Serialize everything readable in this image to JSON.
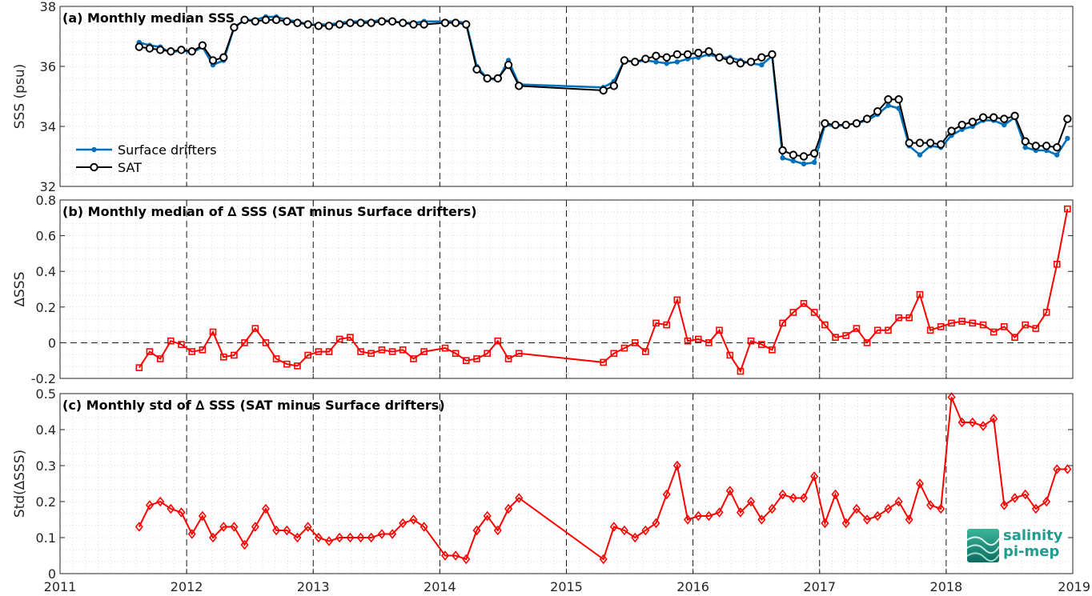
{
  "chart_data": [
    {
      "type": "line",
      "title": "(a) Monthly median SSS",
      "xlabel": "",
      "ylabel": "SSS (psu)",
      "xlim": [
        2011,
        2019
      ],
      "ylim": [
        32,
        38
      ],
      "yticks": [
        "32",
        "34",
        "36",
        "38"
      ],
      "grid": "minor dotted, yearly dashed",
      "legend": "left",
      "series": [
        {
          "name": "Surface drifters",
          "color": "#0072BD",
          "marker": "dot",
          "x": [
            2011.625,
            2011.708,
            2011.792,
            2011.875,
            2011.958,
            2012.042,
            2012.125,
            2012.208,
            2012.292,
            2012.375,
            2012.458,
            2012.542,
            2012.625,
            2012.708,
            2012.792,
            2012.875,
            2012.958,
            2013.042,
            2013.125,
            2013.208,
            2013.292,
            2013.375,
            2013.458,
            2013.542,
            2013.625,
            2013.708,
            2013.792,
            2013.875,
            2014.042,
            2014.125,
            2014.208,
            2014.292,
            2014.375,
            2014.458,
            2014.542,
            2014.625,
            2015.292,
            2015.375,
            2015.458,
            2015.542,
            2015.625,
            2015.708,
            2015.792,
            2015.875,
            2015.958,
            2016.042,
            2016.125,
            2016.208,
            2016.292,
            2016.375,
            2016.458,
            2016.542,
            2016.625,
            2016.708,
            2016.792,
            2016.875,
            2016.958,
            2017.042,
            2017.125,
            2017.208,
            2017.292,
            2017.375,
            2017.458,
            2017.542,
            2017.625,
            2017.708,
            2017.792,
            2017.875,
            2017.958,
            2018.042,
            2018.125,
            2018.208,
            2018.292,
            2018.375,
            2018.458,
            2018.542,
            2018.625,
            2018.708,
            2018.792,
            2018.875,
            2018.958
          ],
          "y": [
            36.8,
            36.7,
            36.65,
            36.45,
            36.55,
            36.45,
            36.65,
            36.05,
            36.2,
            37.3,
            37.55,
            37.55,
            37.65,
            37.65,
            37.55,
            37.5,
            37.4,
            37.4,
            37.4,
            37.45,
            37.5,
            37.5,
            37.5,
            37.55,
            37.5,
            37.45,
            37.45,
            37.5,
            37.5,
            37.5,
            37.45,
            36.0,
            35.6,
            35.55,
            36.2,
            35.4,
            35.3,
            35.5,
            36.2,
            36.15,
            36.2,
            36.15,
            36.1,
            36.15,
            36.25,
            36.3,
            36.4,
            36.3,
            36.3,
            36.2,
            36.1,
            36.05,
            36.35,
            32.95,
            32.85,
            32.75,
            32.8,
            34.05,
            34.0,
            34.05,
            34.1,
            34.2,
            34.4,
            34.7,
            34.6,
            33.35,
            33.05,
            33.35,
            33.3,
            33.7,
            33.9,
            34.0,
            34.2,
            34.2,
            34.05,
            34.3,
            33.3,
            33.2,
            33.2,
            33.05,
            33.6
          ]
        },
        {
          "name": "SAT",
          "color": "#000000",
          "marker": "circle",
          "x": [
            2011.625,
            2011.708,
            2011.792,
            2011.875,
            2011.958,
            2012.042,
            2012.125,
            2012.208,
            2012.292,
            2012.375,
            2012.458,
            2012.542,
            2012.625,
            2012.708,
            2012.792,
            2012.875,
            2012.958,
            2013.042,
            2013.125,
            2013.208,
            2013.292,
            2013.375,
            2013.458,
            2013.542,
            2013.625,
            2013.708,
            2013.792,
            2013.875,
            2014.042,
            2014.125,
            2014.208,
            2014.292,
            2014.375,
            2014.458,
            2014.542,
            2014.625,
            2015.292,
            2015.375,
            2015.458,
            2015.542,
            2015.625,
            2015.708,
            2015.792,
            2015.875,
            2015.958,
            2016.042,
            2016.125,
            2016.208,
            2016.292,
            2016.375,
            2016.458,
            2016.542,
            2016.625,
            2016.708,
            2016.792,
            2016.875,
            2016.958,
            2017.042,
            2017.125,
            2017.208,
            2017.292,
            2017.375,
            2017.458,
            2017.542,
            2017.625,
            2017.708,
            2017.792,
            2017.875,
            2017.958,
            2018.042,
            2018.125,
            2018.208,
            2018.292,
            2018.375,
            2018.458,
            2018.542,
            2018.625,
            2018.708,
            2018.792,
            2018.875,
            2018.958
          ],
          "y": [
            36.65,
            36.6,
            36.55,
            36.5,
            36.55,
            36.5,
            36.7,
            36.2,
            36.3,
            37.3,
            37.55,
            37.5,
            37.55,
            37.55,
            37.5,
            37.45,
            37.4,
            37.35,
            37.35,
            37.4,
            37.45,
            37.45,
            37.45,
            37.5,
            37.5,
            37.45,
            37.4,
            37.4,
            37.45,
            37.45,
            37.4,
            35.9,
            35.6,
            35.6,
            36.05,
            35.35,
            35.2,
            35.35,
            36.2,
            36.15,
            36.25,
            36.35,
            36.3,
            36.4,
            36.4,
            36.45,
            36.5,
            36.3,
            36.2,
            36.1,
            36.15,
            36.3,
            36.4,
            33.2,
            33.05,
            33.0,
            33.1,
            34.1,
            34.05,
            34.05,
            34.1,
            34.25,
            34.5,
            34.9,
            34.9,
            33.45,
            33.45,
            33.45,
            33.4,
            33.85,
            34.05,
            34.15,
            34.3,
            34.3,
            34.25,
            34.35,
            33.5,
            33.35,
            33.35,
            33.3,
            34.25
          ]
        }
      ]
    },
    {
      "type": "line",
      "title": "(b) Monthly median of ∆ SSS (SAT minus Surface drifters)",
      "xlabel": "",
      "ylabel": "∆SSS",
      "xlim": [
        2011,
        2019
      ],
      "ylim": [
        -0.2,
        0.8
      ],
      "yticks": [
        "-0.2",
        "0",
        "0.2",
        "0.4",
        "0.6",
        "0.8"
      ],
      "zero_line": true,
      "series": [
        {
          "color": "#FF0000",
          "marker": "square",
          "x": [
            2011.625,
            2011.708,
            2011.792,
            2011.875,
            2011.958,
            2012.042,
            2012.125,
            2012.208,
            2012.292,
            2012.375,
            2012.458,
            2012.542,
            2012.625,
            2012.708,
            2012.792,
            2012.875,
            2012.958,
            2013.042,
            2013.125,
            2013.208,
            2013.292,
            2013.375,
            2013.458,
            2013.542,
            2013.625,
            2013.708,
            2013.792,
            2013.875,
            2014.042,
            2014.125,
            2014.208,
            2014.292,
            2014.375,
            2014.458,
            2014.542,
            2014.625,
            2015.292,
            2015.375,
            2015.458,
            2015.542,
            2015.625,
            2015.708,
            2015.792,
            2015.875,
            2015.958,
            2016.042,
            2016.125,
            2016.208,
            2016.292,
            2016.375,
            2016.458,
            2016.542,
            2016.625,
            2016.708,
            2016.792,
            2016.875,
            2016.958,
            2017.042,
            2017.125,
            2017.208,
            2017.292,
            2017.375,
            2017.458,
            2017.542,
            2017.625,
            2017.708,
            2017.792,
            2017.875,
            2017.958,
            2018.042,
            2018.125,
            2018.208,
            2018.292,
            2018.375,
            2018.458,
            2018.542,
            2018.625,
            2018.708,
            2018.792,
            2018.875,
            2018.958
          ],
          "y": [
            -0.14,
            -0.05,
            -0.09,
            0.01,
            -0.01,
            -0.05,
            -0.04,
            0.06,
            -0.08,
            -0.07,
            0.0,
            0.08,
            0.0,
            -0.09,
            -0.12,
            -0.13,
            -0.07,
            -0.05,
            -0.05,
            0.02,
            0.03,
            -0.05,
            -0.06,
            -0.04,
            -0.05,
            -0.04,
            -0.09,
            -0.05,
            -0.03,
            -0.06,
            -0.1,
            -0.09,
            -0.06,
            0.01,
            -0.09,
            -0.06,
            -0.11,
            -0.06,
            -0.03,
            0.0,
            -0.05,
            0.11,
            0.1,
            0.24,
            0.01,
            0.02,
            0.0,
            0.07,
            -0.07,
            -0.16,
            0.01,
            -0.01,
            -0.04,
            0.11,
            0.17,
            0.22,
            0.17,
            0.1,
            0.03,
            0.04,
            0.08,
            0.0,
            0.07,
            0.07,
            0.14,
            0.14,
            0.27,
            0.07,
            0.09,
            0.11,
            0.12,
            0.11,
            0.1,
            0.06,
            0.09,
            0.03,
            0.1,
            0.08,
            0.17,
            0.44,
            0.75
          ]
        }
      ]
    },
    {
      "type": "line",
      "title": "(c) Monthly std of ∆ SSS (SAT minus Surface drifters)",
      "xlabel": "",
      "ylabel": "Std(∆SSS)",
      "xlim": [
        2011,
        2019
      ],
      "ylim": [
        0,
        0.5
      ],
      "yticks": [
        "0",
        "0.1",
        "0.2",
        "0.3",
        "0.4",
        "0.5"
      ],
      "xticks": [
        "2011",
        "2012",
        "2013",
        "2014",
        "2015",
        "2016",
        "2017",
        "2018",
        "2019"
      ],
      "series": [
        {
          "color": "#FF0000",
          "marker": "diamond",
          "x": [
            2011.625,
            2011.708,
            2011.792,
            2011.875,
            2011.958,
            2012.042,
            2012.125,
            2012.208,
            2012.292,
            2012.375,
            2012.458,
            2012.542,
            2012.625,
            2012.708,
            2012.792,
            2012.875,
            2012.958,
            2013.042,
            2013.125,
            2013.208,
            2013.292,
            2013.375,
            2013.458,
            2013.542,
            2013.625,
            2013.708,
            2013.792,
            2013.875,
            2014.042,
            2014.125,
            2014.208,
            2014.292,
            2014.375,
            2014.458,
            2014.542,
            2014.625,
            2015.292,
            2015.375,
            2015.458,
            2015.542,
            2015.625,
            2015.708,
            2015.792,
            2015.875,
            2015.958,
            2016.042,
            2016.125,
            2016.208,
            2016.292,
            2016.375,
            2016.458,
            2016.542,
            2016.625,
            2016.708,
            2016.792,
            2016.875,
            2016.958,
            2017.042,
            2017.125,
            2017.208,
            2017.292,
            2017.375,
            2017.458,
            2017.542,
            2017.625,
            2017.708,
            2017.792,
            2017.875,
            2017.958,
            2018.042,
            2018.125,
            2018.208,
            2018.292,
            2018.375,
            2018.458,
            2018.542,
            2018.625,
            2018.708,
            2018.792,
            2018.875,
            2018.958
          ],
          "y": [
            0.13,
            0.19,
            0.2,
            0.18,
            0.17,
            0.11,
            0.16,
            0.1,
            0.13,
            0.13,
            0.08,
            0.13,
            0.18,
            0.12,
            0.12,
            0.1,
            0.13,
            0.1,
            0.09,
            0.1,
            0.1,
            0.1,
            0.1,
            0.11,
            0.11,
            0.14,
            0.15,
            0.13,
            0.05,
            0.05,
            0.04,
            0.12,
            0.16,
            0.12,
            0.18,
            0.21,
            0.04,
            0.13,
            0.12,
            0.1,
            0.12,
            0.14,
            0.22,
            0.3,
            0.15,
            0.16,
            0.16,
            0.17,
            0.23,
            0.17,
            0.2,
            0.15,
            0.18,
            0.22,
            0.21,
            0.21,
            0.27,
            0.14,
            0.22,
            0.14,
            0.18,
            0.15,
            0.16,
            0.18,
            0.2,
            0.15,
            0.25,
            0.19,
            0.18,
            0.49,
            0.42,
            0.42,
            0.41,
            0.43,
            0.19,
            0.21,
            0.22,
            0.18,
            0.2,
            0.29,
            0.29
          ]
        }
      ]
    }
  ],
  "logo": {
    "line1": "salinity",
    "line2": "pi-mep",
    "color": "#1f9e8f"
  }
}
